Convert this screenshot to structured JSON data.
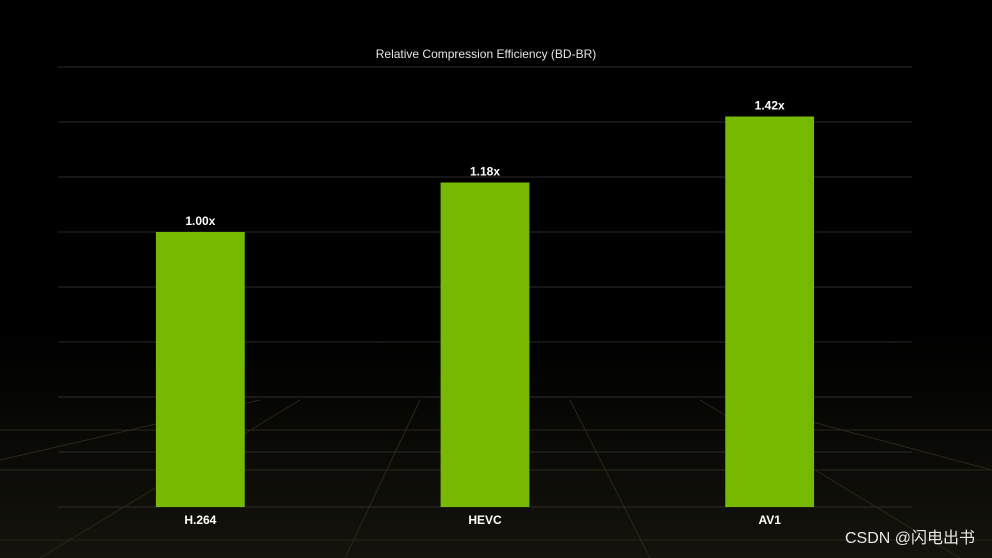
{
  "chart_data": {
    "type": "bar",
    "title": "Relative Compression Efficiency  (BD-BR)",
    "categories": [
      "H.264",
      "HEVC",
      "AV1"
    ],
    "values": [
      1.0,
      1.18,
      1.42
    ],
    "value_labels": [
      "1.00x",
      "1.18x",
      "1.42x"
    ],
    "color": "#76b900",
    "ylim": [
      0,
      1.6
    ],
    "yticks": [
      0,
      0.2,
      0.4,
      0.6,
      0.8,
      1,
      1.2,
      1.4,
      1.6
    ],
    "grid": true
  },
  "watermark": "CSDN @闪电出书"
}
